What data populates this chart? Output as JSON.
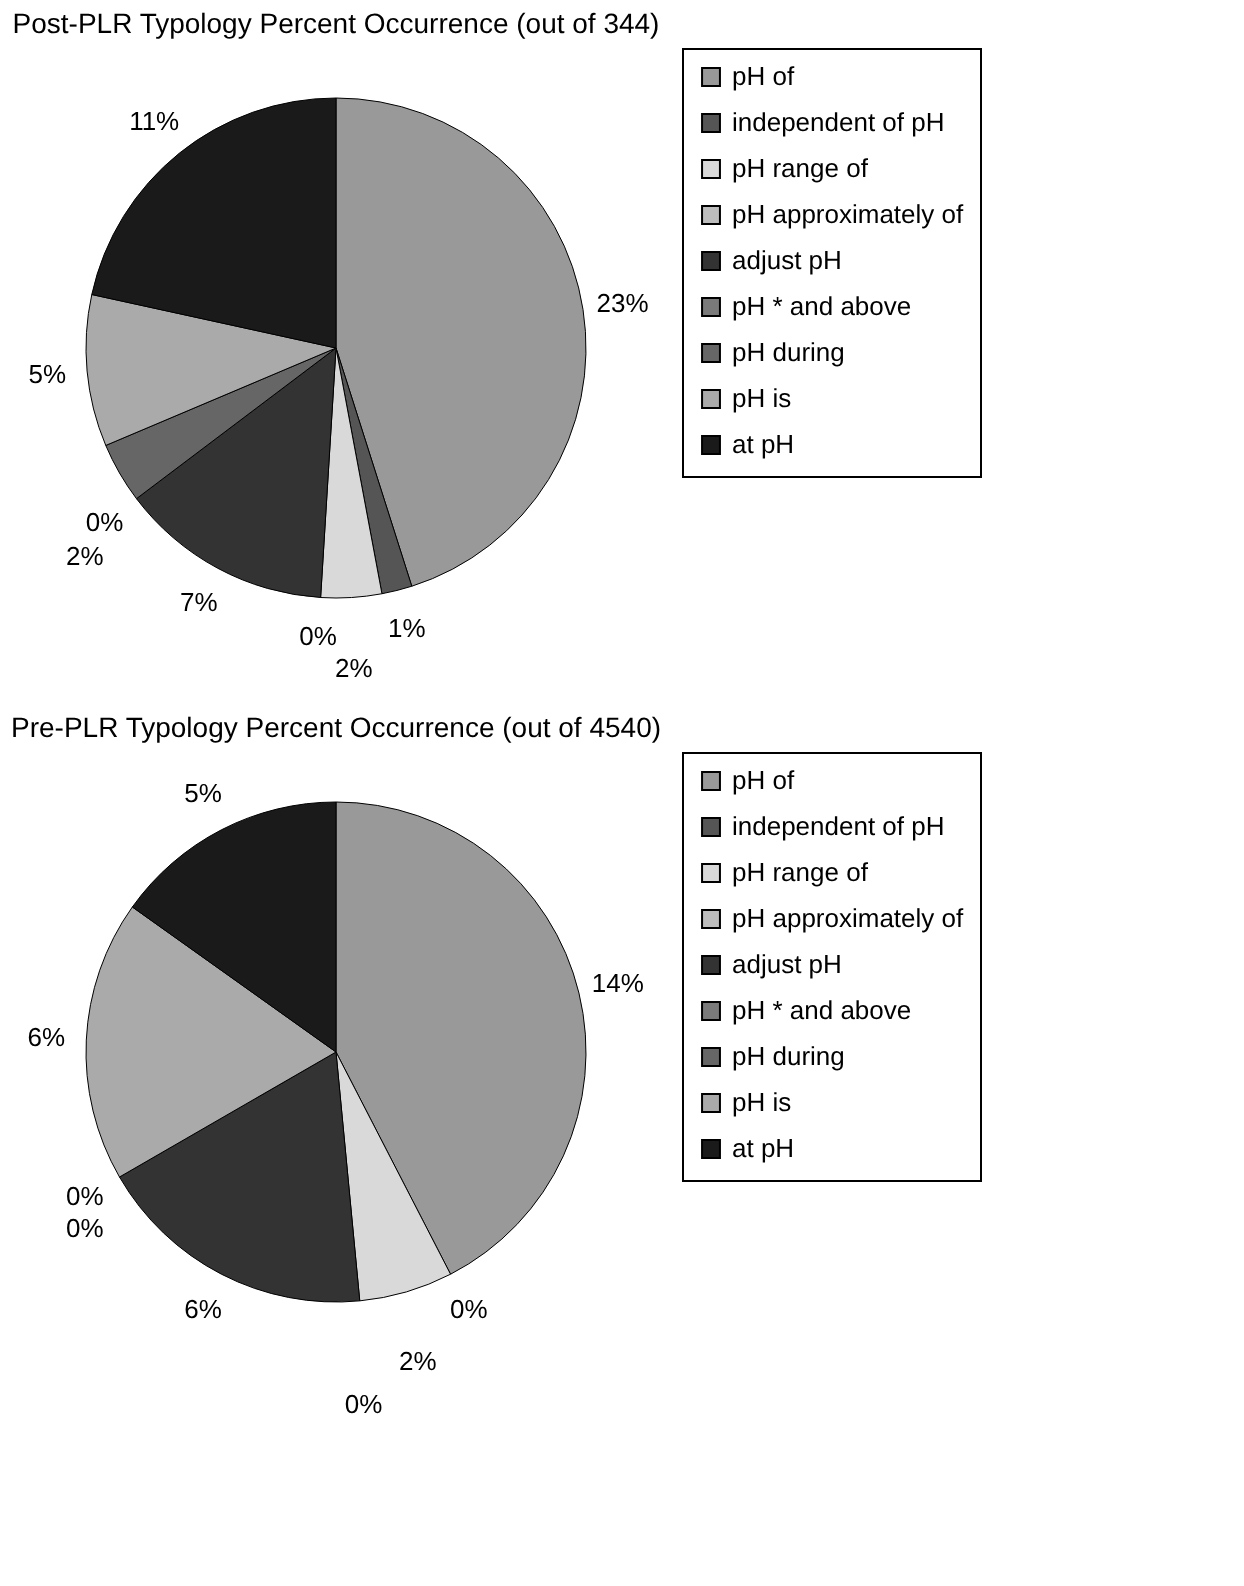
{
  "chart_data": [
    {
      "type": "pie",
      "title": "Post-PLR Typology Percent Occurrence (out of 344)",
      "categories": [
        "pH of",
        "independent of pH",
        "pH range of",
        "pH approximately of",
        "adjust pH",
        "pH * and above",
        "pH during",
        "pH is",
        "at pH"
      ],
      "values": [
        23,
        1,
        2,
        0,
        7,
        0,
        2,
        5,
        11
      ],
      "value_labels": [
        "23%",
        "1%",
        "2%",
        "0%",
        "7%",
        "0%",
        "2%",
        "5%",
        "11%"
      ],
      "colors": [
        "#999999",
        "#555555",
        "#d9d9d9",
        "#bdbdbd",
        "#333333",
        "#7a7a7a",
        "#666666",
        "#aaaaaa",
        "#1a1a1a"
      ],
      "legend": "right"
    },
    {
      "type": "pie",
      "title": "Pre-PLR Typology Percent Occurrence (out of 4540)",
      "categories": [
        "pH of",
        "independent of pH",
        "pH range of",
        "pH approximately of",
        "adjust pH",
        "pH * and above",
        "pH during",
        "pH is",
        "at pH"
      ],
      "values": [
        14,
        0,
        2,
        0,
        6,
        0,
        0,
        6,
        5
      ],
      "value_labels": [
        "14%",
        "0%",
        "2%",
        "0%",
        "6%",
        "0%",
        "0%",
        "6%",
        "5%"
      ],
      "colors": [
        "#999999",
        "#555555",
        "#d9d9d9",
        "#bdbdbd",
        "#333333",
        "#7a7a7a",
        "#666666",
        "#aaaaaa",
        "#1a1a1a"
      ],
      "legend": "right"
    }
  ]
}
